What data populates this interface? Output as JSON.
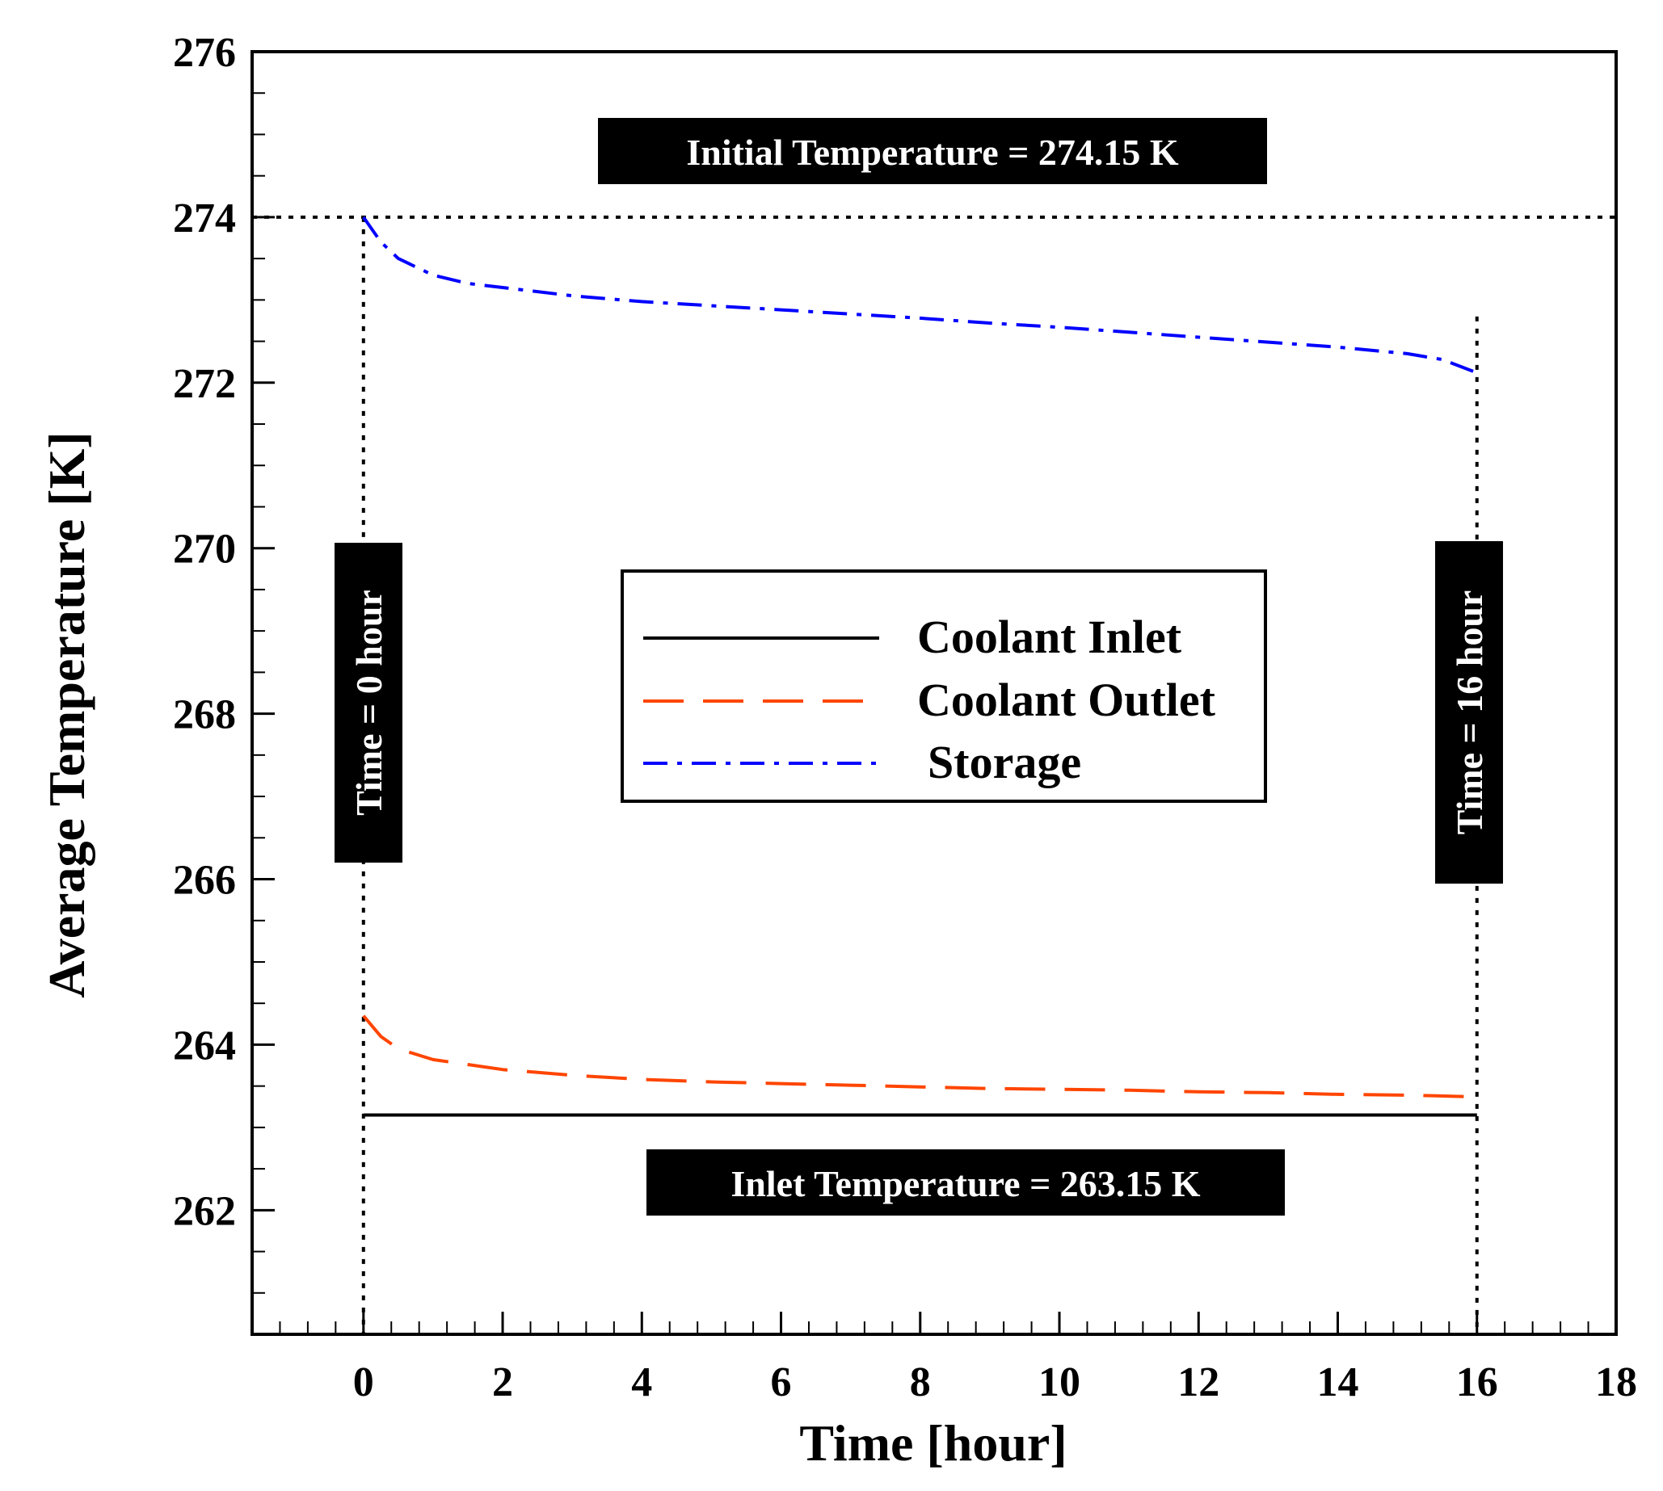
{
  "chart_data": {
    "type": "line",
    "xlabel": "Time [hour]",
    "ylabel": "Average Temperature [K]",
    "xlim": [
      -1.6,
      18
    ],
    "ylim": [
      260.5,
      276
    ],
    "xticks": [
      "0",
      "2",
      "4",
      "6",
      "8",
      "10",
      "12",
      "14",
      "16",
      "18"
    ],
    "yticks": [
      "262",
      "264",
      "266",
      "268",
      "270",
      "272",
      "274",
      "276"
    ],
    "grid": false,
    "legend_position": "center",
    "series": [
      {
        "name": "Coolant Inlet",
        "style": "solid",
        "color": "#000000",
        "x": [
          0,
          16
        ],
        "y": [
          263.15,
          263.15
        ]
      },
      {
        "name": "Coolant Outlet",
        "style": "dashed",
        "color": "#ff4500",
        "x": [
          0,
          0.25,
          0.5,
          1,
          1.5,
          2,
          3,
          4,
          5,
          6,
          7,
          8,
          9,
          10,
          11,
          12,
          13,
          14,
          15,
          16
        ],
        "y": [
          264.35,
          264.1,
          263.95,
          263.82,
          263.76,
          263.7,
          263.63,
          263.58,
          263.55,
          263.53,
          263.51,
          263.49,
          263.47,
          263.46,
          263.45,
          263.43,
          263.42,
          263.4,
          263.39,
          263.37
        ]
      },
      {
        "name": "Storage",
        "style": "dashdot",
        "color": "#0000ff",
        "x": [
          0,
          0.25,
          0.5,
          1,
          1.5,
          2,
          3,
          4,
          5,
          6,
          7,
          8,
          9,
          10,
          11,
          12,
          13,
          14,
          15,
          15.5,
          16
        ],
        "y": [
          274.0,
          273.7,
          273.5,
          273.3,
          273.2,
          273.15,
          273.05,
          272.98,
          272.93,
          272.88,
          272.83,
          272.78,
          272.72,
          272.67,
          272.61,
          272.55,
          272.49,
          272.43,
          272.35,
          272.28,
          272.12
        ]
      }
    ],
    "reference_lines": [
      {
        "orientation": "horizontal",
        "value": 274,
        "style": "dotted"
      },
      {
        "orientation": "vertical",
        "value": 0,
        "style": "dotted"
      },
      {
        "orientation": "vertical",
        "value": 16,
        "style": "dotted"
      }
    ],
    "annotations": {
      "initial_temperature": "Initial Temperature = 274.15 K",
      "inlet_temperature": "Inlet Temperature = 263.15 K",
      "time_start": "Time = 0 hour",
      "time_end": "Time = 16 hour"
    }
  }
}
